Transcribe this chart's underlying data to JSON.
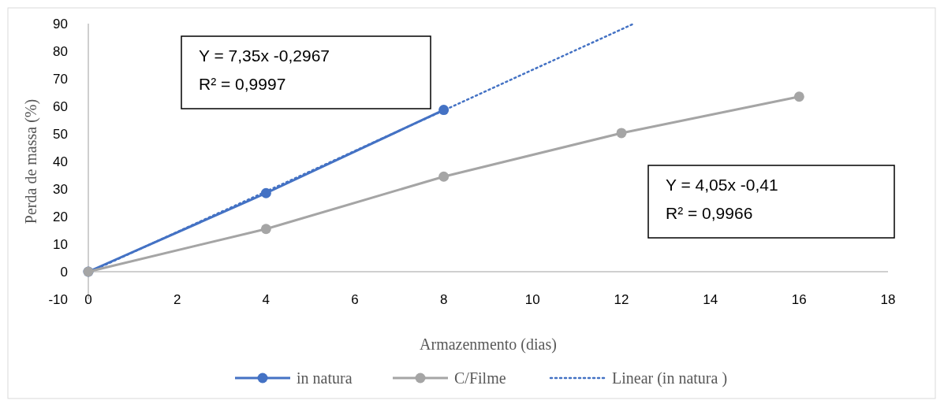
{
  "chart_data": {
    "type": "line",
    "xlabel": "Armazenmento (dias)",
    "ylabel": "Perda de massa (%)",
    "xlim": [
      0,
      18
    ],
    "xticks": [
      0,
      2,
      4,
      6,
      8,
      10,
      12,
      14,
      16,
      18
    ],
    "ylim": [
      -10,
      90
    ],
    "yticks": [
      -10,
      0,
      10,
      20,
      30,
      40,
      50,
      60,
      70,
      80,
      90
    ],
    "grid": false,
    "legend": "bottom",
    "marker": "circle",
    "series": [
      {
        "name": "in natura",
        "color": "#4472c4",
        "x": [
          0,
          4,
          8
        ],
        "values": [
          0,
          28.5,
          58.7
        ]
      },
      {
        "name": "C/Filme",
        "color": "#a5a5a5",
        "x": [
          0,
          4,
          8,
          12,
          16
        ],
        "values": [
          0,
          15.5,
          34.5,
          50.3,
          63.5
        ]
      },
      {
        "name": "Linear (in natura )",
        "color": "#4472c4",
        "type": "line",
        "line_style": "dotted",
        "marker": "none",
        "x": [
          0,
          12.28
        ],
        "values": [
          -0.3,
          90
        ]
      }
    ],
    "annotations": [
      "Y = 7,35x -0,2967\nR² = 0,9997",
      "Y = 4,05x -0,41\nR² = 0,9966"
    ]
  }
}
